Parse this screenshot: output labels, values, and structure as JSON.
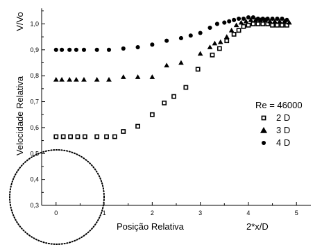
{
  "chart_data": {
    "type": "scatter",
    "xlabel": "Posição Relativa",
    "xlabel_extra": "2*x/D",
    "ylabel": "Velocidade Relativa",
    "ylabel_top": "V/Vo",
    "xlim": [
      -0.3,
      5.3
    ],
    "ylim": [
      0.3,
      1.06
    ],
    "x_ticks": [
      0,
      1,
      2,
      3,
      4,
      5
    ],
    "y_ticks": [
      0.3,
      0.4,
      0.5,
      0.6,
      0.7,
      0.8,
      0.9,
      1.0
    ],
    "x_tick_labels": [
      "0",
      "1",
      "2",
      "3",
      "4",
      "5"
    ],
    "y_tick_labels": [
      "0,3",
      "0,4",
      "0,5",
      "0,6",
      "0,7",
      "0,8",
      "0,9",
      "1,0"
    ],
    "grid": false,
    "legend": {
      "placement": "right",
      "title": "Re = 46000"
    },
    "series": [
      {
        "name": "2 D",
        "marker": "square",
        "x": [
          0.0,
          0.15,
          0.3,
          0.45,
          0.6,
          0.85,
          1.05,
          1.22,
          1.4,
          1.7,
          2.0,
          2.25,
          2.45,
          2.7,
          2.95,
          3.25,
          3.4,
          3.55,
          3.7,
          3.8,
          3.9,
          4.0,
          4.1,
          4.2,
          4.3,
          4.4,
          4.5,
          4.6,
          4.7,
          4.8
        ],
        "y": [
          0.565,
          0.565,
          0.565,
          0.565,
          0.565,
          0.565,
          0.565,
          0.565,
          0.585,
          0.605,
          0.65,
          0.695,
          0.72,
          0.755,
          0.825,
          0.88,
          0.905,
          0.935,
          0.96,
          0.975,
          0.99,
          0.995,
          1.0,
          1.0,
          1.0,
          1.0,
          0.995,
          0.995,
          0.995,
          0.995
        ]
      },
      {
        "name": "3 D",
        "marker": "triangle",
        "x": [
          0.0,
          0.12,
          0.28,
          0.42,
          0.58,
          0.85,
          1.1,
          1.4,
          1.7,
          2.0,
          2.3,
          2.6,
          3.0,
          3.2,
          3.3,
          3.42,
          3.55,
          3.65,
          3.75,
          3.85,
          3.95,
          4.05,
          4.15,
          4.25,
          4.35,
          4.45,
          4.55,
          4.65,
          4.75,
          4.85
        ],
        "y": [
          0.785,
          0.785,
          0.785,
          0.785,
          0.785,
          0.785,
          0.785,
          0.795,
          0.795,
          0.795,
          0.84,
          0.85,
          0.885,
          0.91,
          0.925,
          0.93,
          0.95,
          0.975,
          0.995,
          1.005,
          1.01,
          1.015,
          1.015,
          1.015,
          1.015,
          1.01,
          1.01,
          1.01,
          1.01,
          1.005
        ]
      },
      {
        "name": "4 D",
        "marker": "circle",
        "x": [
          0.0,
          0.12,
          0.28,
          0.42,
          0.58,
          0.85,
          1.1,
          1.4,
          1.7,
          2.0,
          2.3,
          2.6,
          2.8,
          3.0,
          3.2,
          3.35,
          3.5,
          3.6,
          3.7,
          3.8,
          3.9,
          4.0,
          4.1,
          4.2,
          4.3,
          4.4,
          4.5,
          4.6,
          4.7,
          4.8
        ],
        "y": [
          0.9,
          0.9,
          0.9,
          0.9,
          0.9,
          0.9,
          0.9,
          0.905,
          0.91,
          0.92,
          0.935,
          0.945,
          0.955,
          0.965,
          0.985,
          1.0,
          1.005,
          1.01,
          1.015,
          1.02,
          1.02,
          1.025,
          1.025,
          1.02,
          1.02,
          1.02,
          1.02,
          1.02,
          1.02,
          1.015
        ]
      }
    ]
  }
}
